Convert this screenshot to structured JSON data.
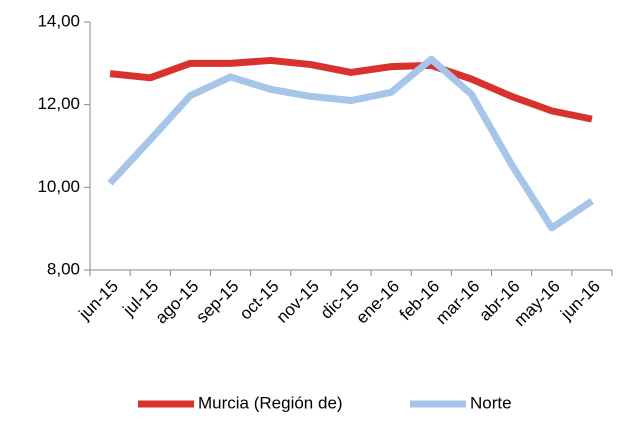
{
  "chart_data": {
    "type": "line",
    "categories": [
      "jun-15",
      "jul-15",
      "ago-15",
      "sep-15",
      "oct-15",
      "nov-15",
      "dic-15",
      "ene-16",
      "feb-16",
      "mar-16",
      "abr-16",
      "may-16",
      "jun-16"
    ],
    "series": [
      {
        "name": "Murcia (Región de)",
        "color": "#d7322d",
        "values": [
          12.75,
          12.65,
          13.0,
          13.0,
          13.07,
          12.97,
          12.78,
          12.92,
          12.95,
          12.62,
          12.2,
          11.85,
          11.65
        ]
      },
      {
        "name": "Norte",
        "color": "#a6c5e9",
        "values": [
          10.1,
          11.15,
          12.22,
          12.67,
          12.37,
          12.2,
          12.1,
          12.3,
          13.1,
          12.25,
          10.55,
          9.02,
          9.67
        ]
      }
    ],
    "ylim": [
      8,
      14
    ],
    "yticks": [
      {
        "value": 8,
        "label": "8,00"
      },
      {
        "value": 10,
        "label": "10,00"
      },
      {
        "value": 12,
        "label": "12,00"
      },
      {
        "value": 14,
        "label": "14,00"
      }
    ],
    "grid": false,
    "legend": "bottom"
  }
}
